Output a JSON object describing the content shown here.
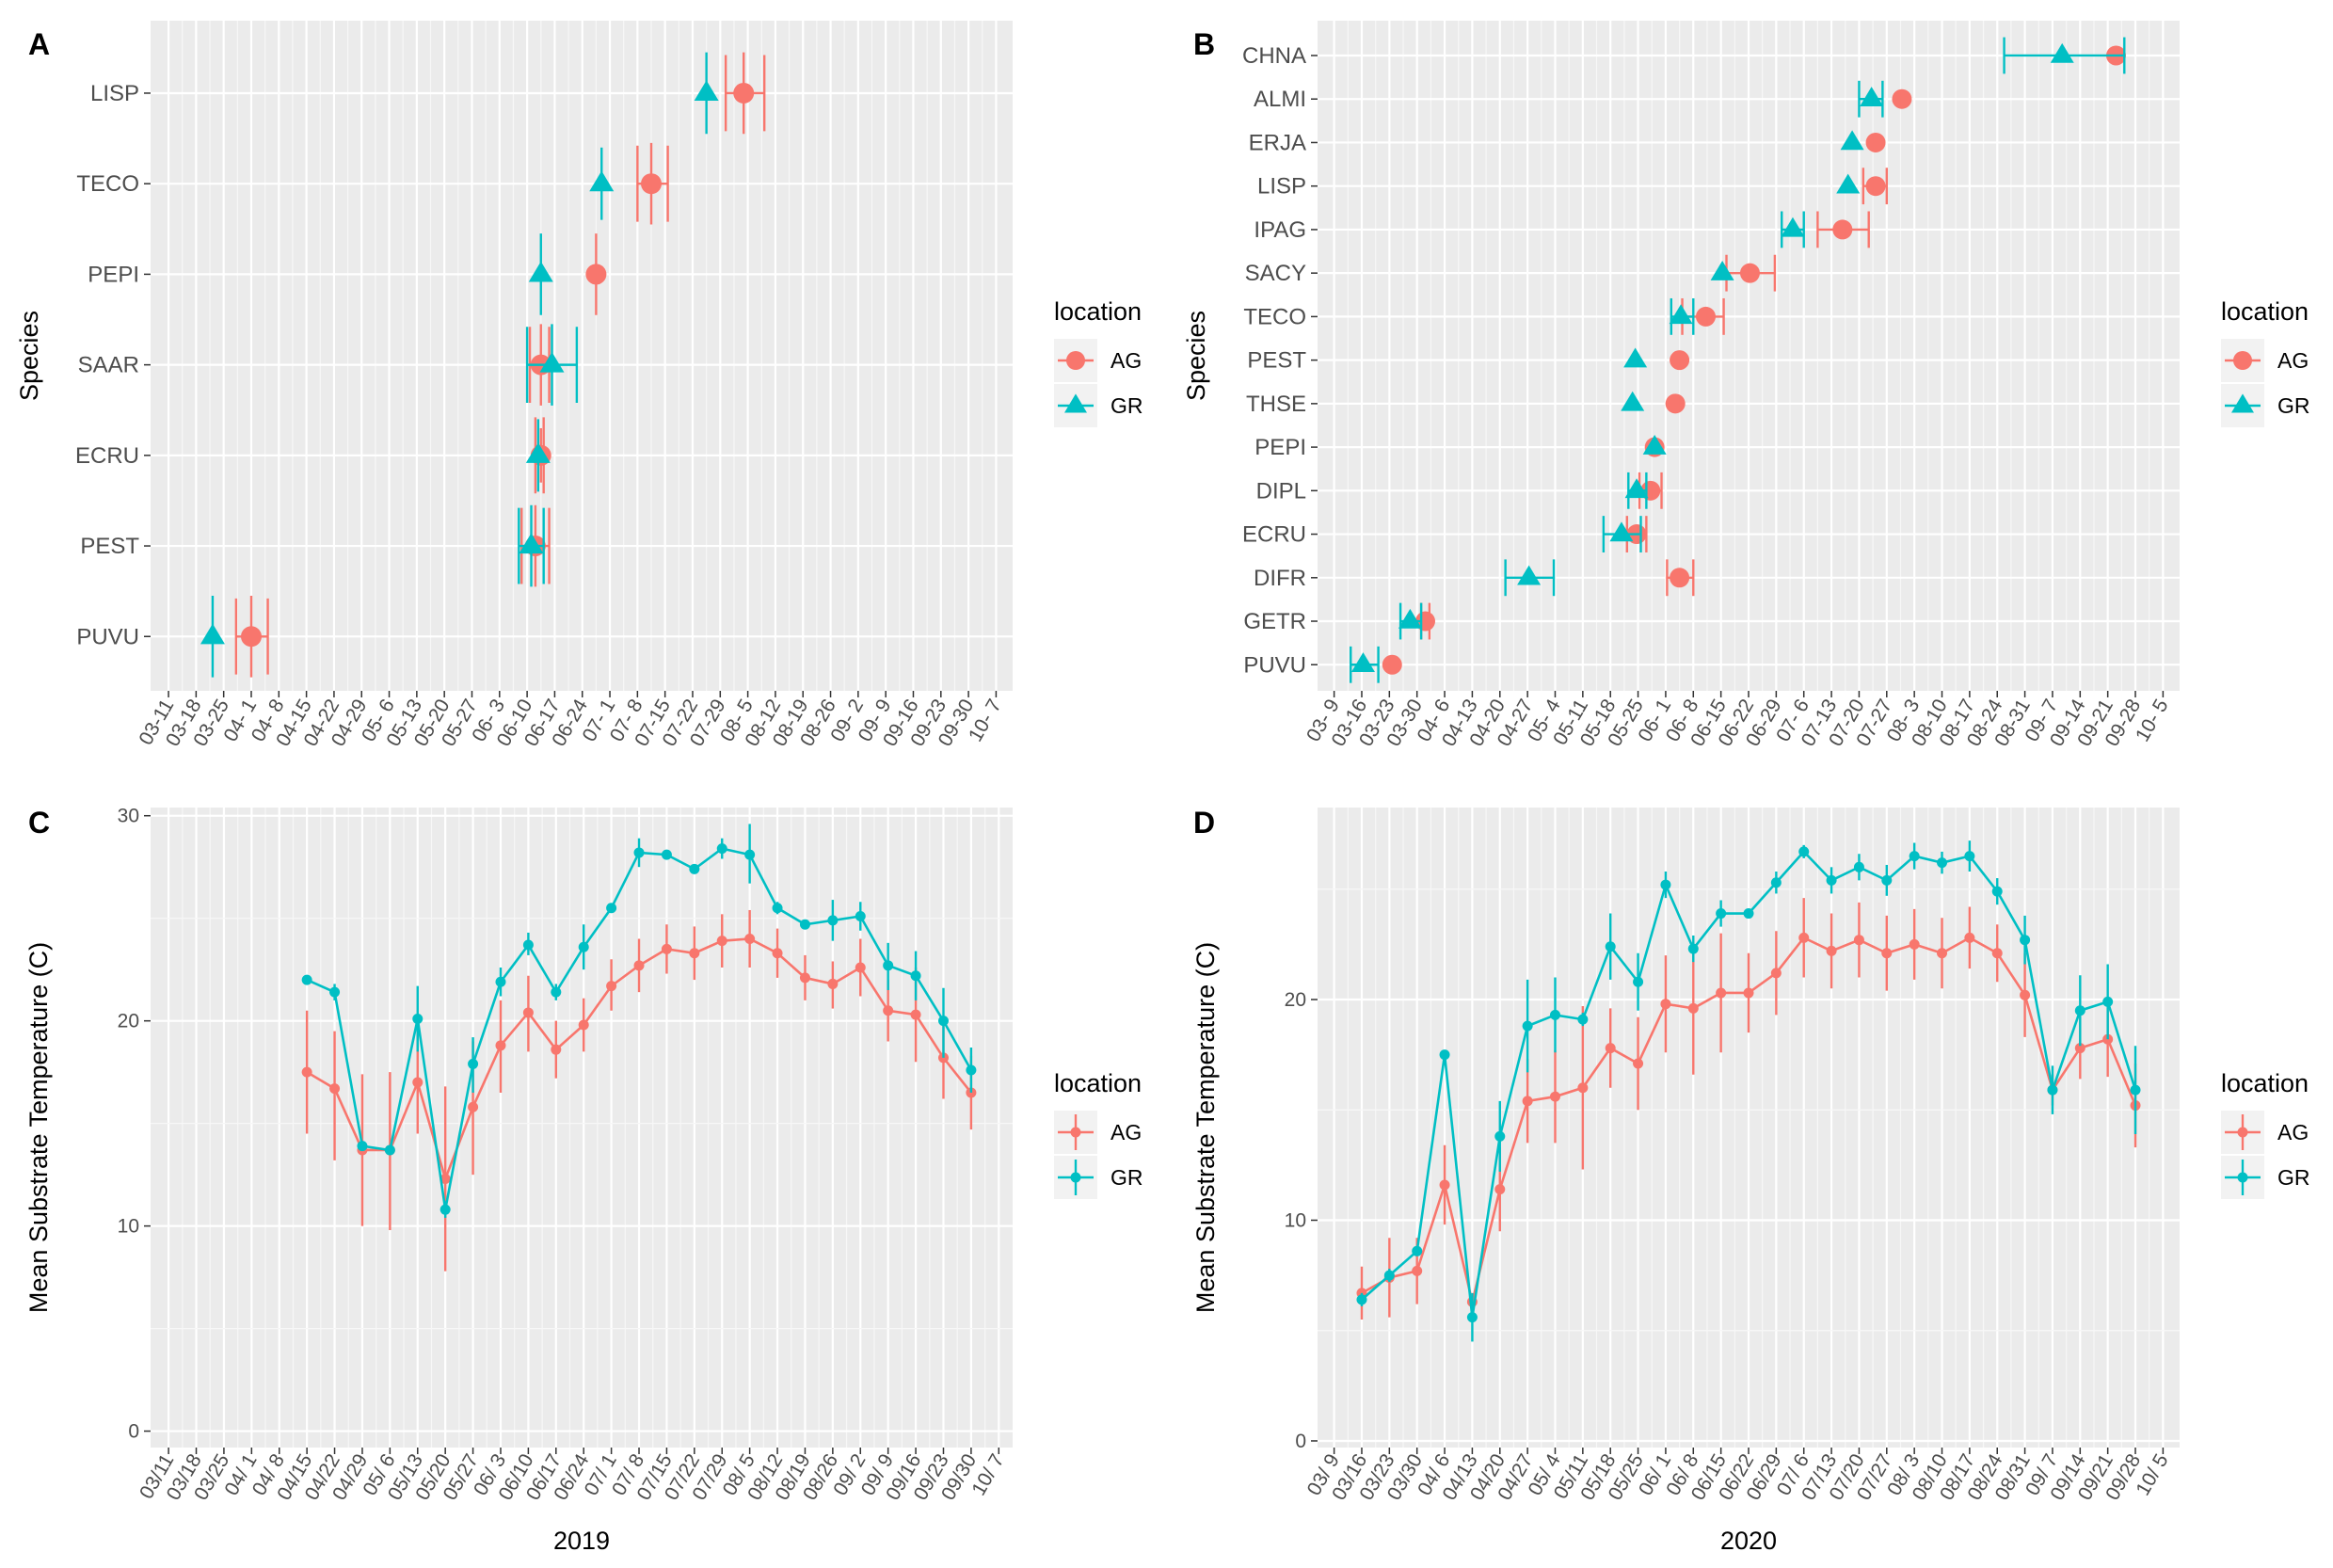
{
  "colors": {
    "AG": "#F8766D",
    "GR": "#00BFC4",
    "panel_bg": "#EBEBEB",
    "grid": "#FFFFFF",
    "axis_text": "#4D4D4D"
  },
  "panels": {
    "A": "A",
    "B": "B",
    "C": "C",
    "D": "D"
  },
  "legend": {
    "title": "location",
    "entries": [
      "AG",
      "GR"
    ]
  },
  "chart_data": [
    {
      "panel": "A",
      "type": "scatter",
      "orientation": "horizontal-errorbars",
      "ylabel": "Species",
      "xlabel": "",
      "x_ticks": [
        "03-11",
        "03-18",
        "03-25",
        "04- 1",
        "04- 8",
        "04-15",
        "04-22",
        "04-29",
        "05- 6",
        "05-13",
        "05-20",
        "05-27",
        "06- 3",
        "06-10",
        "06-17",
        "06-24",
        "07- 1",
        "07- 8",
        "07-15",
        "07-22",
        "07-29",
        "08- 5",
        "08-12",
        "08-19",
        "08-26",
        "09- 2",
        "09- 9",
        "09-16",
        "09-23",
        "09-30",
        "10- 7"
      ],
      "x_range_weeks": [
        -0.65,
        30.6
      ],
      "species": [
        "LISP",
        "TECO",
        "PEPI",
        "SAAR",
        "ECRU",
        "PEST",
        "PUVU"
      ],
      "series": [
        {
          "name": "AG",
          "points": [
            {
              "species": "LISP",
              "x": 20.85,
              "xmin": 20.2,
              "xmax": 21.6,
              "ymin": 6.55,
              "ymax": 7.45
            },
            {
              "species": "TECO",
              "x": 17.5,
              "xmin": 17.0,
              "xmax": 18.1,
              "ymin": 5.55,
              "ymax": 6.45
            },
            {
              "species": "PEPI",
              "x": 15.5,
              "xmin": 15.5,
              "xmax": 15.5,
              "ymin": 4.55,
              "ymax": 5.45
            },
            {
              "species": "SAAR",
              "x": 13.5,
              "xmin": 13.1,
              "xmax": 13.8,
              "ymin": 3.55,
              "ymax": 4.45
            },
            {
              "species": "ECRU",
              "x": 13.5,
              "xmin": 13.3,
              "xmax": 13.6,
              "ymin": 2.7,
              "ymax": 3.3
            },
            {
              "species": "PEST",
              "x": 13.3,
              "xmin": 12.8,
              "xmax": 13.8,
              "ymin": 1.55,
              "ymax": 2.45
            },
            {
              "species": "PUVU",
              "x": 3.0,
              "xmin": 2.45,
              "xmax": 3.6,
              "ymin": 0.55,
              "ymax": 1.45
            }
          ]
        },
        {
          "name": "GR",
          "points": [
            {
              "species": "LISP",
              "x": 19.5,
              "xmin": 19.5,
              "xmax": 19.5,
              "ymin": 6.55,
              "ymax": 7.45
            },
            {
              "species": "TECO",
              "x": 15.7,
              "xmin": 15.7,
              "xmax": 15.7,
              "ymin": 5.6,
              "ymax": 6.4
            },
            {
              "species": "PEPI",
              "x": 13.5,
              "xmin": 13.5,
              "xmax": 13.5,
              "ymin": 4.55,
              "ymax": 5.45
            },
            {
              "species": "SAAR",
              "x": 13.9,
              "xmin": 13.0,
              "xmax": 14.8,
              "ymin": 3.55,
              "ymax": 4.45
            },
            {
              "species": "ECRU",
              "x": 13.4,
              "xmin": 13.4,
              "xmax": 13.4,
              "ymin": 2.6,
              "ymax": 3.4
            },
            {
              "species": "PEST",
              "x": 13.15,
              "xmin": 12.7,
              "xmax": 13.6,
              "ymin": 1.55,
              "ymax": 2.45
            },
            {
              "species": "PUVU",
              "x": 1.6,
              "xmin": 1.6,
              "xmax": 1.6,
              "ymin": 0.55,
              "ymax": 1.45
            }
          ]
        }
      ]
    },
    {
      "panel": "B",
      "type": "scatter",
      "orientation": "horizontal-errorbars",
      "ylabel": "Species",
      "xlabel": "",
      "x_ticks": [
        "03- 9",
        "03-16",
        "03-23",
        "03-30",
        "04- 6",
        "04-13",
        "04-20",
        "04-27",
        "05- 4",
        "05-11",
        "05-18",
        "05-25",
        "06- 1",
        "06- 8",
        "06-15",
        "06-22",
        "06-29",
        "07- 6",
        "07-13",
        "07-20",
        "07-27",
        "08- 3",
        "08-10",
        "08-17",
        "08-24",
        "08-31",
        "09- 7",
        "09-14",
        "09-21",
        "09-28",
        "10- 5"
      ],
      "x_range_weeks": [
        -0.6,
        30.6
      ],
      "species": [
        "CHNA",
        "ALMI",
        "ERJA",
        "LISP",
        "IPAG",
        "SACY",
        "TECO",
        "PEST",
        "THSE",
        "PEPI",
        "DIPL",
        "ECRU",
        "DIFR",
        "GETR",
        "PUVU"
      ],
      "series": [
        {
          "name": "AG",
          "points": [
            {
              "species": "CHNA",
              "x": 28.3,
              "xmin": 28.3,
              "xmax": 28.3
            },
            {
              "species": "ALMI",
              "x": 20.55,
              "xmin": 20.55,
              "xmax": 20.55
            },
            {
              "species": "ERJA",
              "x": 19.6,
              "xmin": 19.6,
              "xmax": 19.6
            },
            {
              "species": "LISP",
              "x": 19.6,
              "xmin": 19.15,
              "xmax": 20.0
            },
            {
              "species": "IPAG",
              "x": 18.4,
              "xmin": 17.5,
              "xmax": 19.35
            },
            {
              "species": "SACY",
              "x": 15.05,
              "xmin": 14.2,
              "xmax": 15.95
            },
            {
              "species": "TECO",
              "x": 13.45,
              "xmin": 12.6,
              "xmax": 14.1
            },
            {
              "species": "PEST",
              "x": 12.5,
              "xmin": 12.5,
              "xmax": 12.5
            },
            {
              "species": "THSE",
              "x": 12.35,
              "xmin": 12.35,
              "xmax": 12.35
            },
            {
              "species": "PEPI",
              "x": 11.6,
              "xmin": 11.6,
              "xmax": 11.6
            },
            {
              "species": "DIPL",
              "x": 11.45,
              "xmin": 11.05,
              "xmax": 11.85
            },
            {
              "species": "ECRU",
              "x": 10.95,
              "xmin": 10.6,
              "xmax": 11.3
            },
            {
              "species": "DIFR",
              "x": 12.5,
              "xmin": 12.05,
              "xmax": 13.0
            },
            {
              "species": "GETR",
              "x": 3.3,
              "xmin": 3.15,
              "xmax": 3.45
            },
            {
              "species": "PUVU",
              "x": 2.1,
              "xmin": 2.1,
              "xmax": 2.1
            }
          ]
        },
        {
          "name": "GR",
          "points": [
            {
              "species": "CHNA",
              "x": 26.35,
              "xmin": 24.25,
              "xmax": 28.6
            },
            {
              "species": "ALMI",
              "x": 19.45,
              "xmin": 19.0,
              "xmax": 19.85
            },
            {
              "species": "ERJA",
              "x": 18.75,
              "xmin": 18.75,
              "xmax": 18.75
            },
            {
              "species": "LISP",
              "x": 18.6,
              "xmin": 18.6,
              "xmax": 18.6
            },
            {
              "species": "IPAG",
              "x": 16.6,
              "xmin": 16.2,
              "xmax": 17.0
            },
            {
              "species": "SACY",
              "x": 14.05,
              "xmin": 14.05,
              "xmax": 14.05
            },
            {
              "species": "TECO",
              "x": 12.55,
              "xmin": 12.2,
              "xmax": 13.0
            },
            {
              "species": "PEST",
              "x": 10.9,
              "xmin": 10.9,
              "xmax": 10.9
            },
            {
              "species": "THSE",
              "x": 10.8,
              "xmin": 10.8,
              "xmax": 10.8
            },
            {
              "species": "PEPI",
              "x": 11.6,
              "xmin": 11.6,
              "xmax": 11.6
            },
            {
              "species": "DIPL",
              "x": 10.95,
              "xmin": 10.65,
              "xmax": 11.3
            },
            {
              "species": "ECRU",
              "x": 10.4,
              "xmin": 9.75,
              "xmax": 11.1
            },
            {
              "species": "DIFR",
              "x": 7.05,
              "xmin": 6.2,
              "xmax": 7.95
            },
            {
              "species": "GETR",
              "x": 2.75,
              "xmin": 2.4,
              "xmax": 3.15
            },
            {
              "species": "PUVU",
              "x": 1.05,
              "xmin": 0.6,
              "xmax": 1.6
            }
          ]
        }
      ]
    },
    {
      "panel": "C",
      "type": "line",
      "title": "",
      "xlabel": "2019",
      "ylabel": "Mean Substrate Temperature (C)",
      "x_ticks": [
        "03/11",
        "03/18",
        "03/25",
        "04/ 1",
        "04/ 8",
        "04/15",
        "04/22",
        "04/29",
        "05/ 6",
        "05/13",
        "05/20",
        "05/27",
        "06/ 3",
        "06/10",
        "06/17",
        "06/24",
        "07/ 1",
        "07/ 8",
        "07/15",
        "07/22",
        "07/29",
        "08/ 5",
        "08/12",
        "08/19",
        "08/26",
        "09/ 2",
        "09/ 9",
        "09/16",
        "09/23",
        "09/30",
        "10/ 7"
      ],
      "x_range_weeks": [
        -0.65,
        30.5
      ],
      "y_ticks": [
        0,
        10,
        20,
        30
      ],
      "ylim": [
        -0.8,
        30.4
      ],
      "series": [
        {
          "name": "AG",
          "x": [
            5,
            6,
            7,
            8,
            9,
            10,
            11,
            12,
            13,
            14,
            15,
            16,
            17,
            18,
            19,
            20,
            21,
            22,
            23,
            24,
            25,
            26,
            27,
            28,
            29
          ],
          "values": [
            17.5,
            16.7,
            13.7,
            13.7,
            17.0,
            12.3,
            15.8,
            18.8,
            20.4,
            18.6,
            19.8,
            21.7,
            22.7,
            23.5,
            23.3,
            23.9,
            24.0,
            23.3,
            22.1,
            21.8,
            22.6,
            20.5,
            20.3,
            18.2,
            16.5
          ],
          "lower": [
            14.5,
            13.2,
            10.0,
            9.8,
            14.5,
            7.8,
            12.5,
            16.5,
            18.5,
            17.2,
            18.5,
            20.5,
            21.4,
            22.3,
            22.0,
            22.6,
            22.6,
            22.1,
            21.0,
            20.6,
            21.2,
            19.0,
            18.0,
            16.2,
            14.7
          ],
          "upper": [
            20.5,
            19.5,
            17.4,
            17.5,
            19.5,
            16.8,
            19.0,
            21.0,
            22.2,
            20.0,
            21.1,
            23.0,
            24.0,
            24.7,
            24.6,
            25.2,
            25.4,
            24.5,
            23.2,
            22.9,
            24.0,
            22.0,
            22.6,
            20.2,
            18.3
          ]
        },
        {
          "name": "GR",
          "x": [
            5,
            6,
            7,
            8,
            9,
            10,
            11,
            12,
            13,
            14,
            15,
            16,
            17,
            18,
            19,
            20,
            21,
            22,
            23,
            24,
            25,
            26,
            27,
            28,
            29
          ],
          "values": [
            22.0,
            21.4,
            13.9,
            13.7,
            20.1,
            10.8,
            17.9,
            21.9,
            23.7,
            21.4,
            23.6,
            25.5,
            28.2,
            28.1,
            27.4,
            28.4,
            28.1,
            25.5,
            24.7,
            24.9,
            25.1,
            22.7,
            22.2,
            20.0,
            17.6
          ],
          "lower": [
            21.8,
            21.0,
            13.7,
            13.5,
            18.5,
            10.4,
            16.5,
            21.2,
            23.2,
            21.0,
            22.5,
            25.3,
            27.5,
            27.9,
            27.2,
            27.9,
            26.7,
            25.2,
            24.5,
            23.9,
            24.4,
            21.5,
            21.0,
            18.2,
            16.5
          ],
          "upper": [
            22.2,
            21.8,
            14.1,
            13.9,
            21.7,
            11.2,
            19.2,
            22.6,
            24.3,
            21.8,
            24.7,
            25.7,
            28.9,
            28.3,
            27.6,
            28.9,
            29.6,
            25.8,
            24.9,
            25.9,
            25.8,
            23.8,
            23.4,
            21.6,
            18.7
          ]
        }
      ]
    },
    {
      "panel": "D",
      "type": "line",
      "title": "",
      "xlabel": "2020",
      "ylabel": "Mean Substrate Temperature (C)",
      "x_ticks": [
        "03/ 9",
        "03/16",
        "03/23",
        "03/30",
        "04/ 6",
        "04/13",
        "04/20",
        "04/27",
        "05/ 4",
        "05/11",
        "05/18",
        "05/25",
        "06/ 1",
        "06/ 8",
        "06/15",
        "06/22",
        "06/29",
        "07/ 6",
        "07/13",
        "07/20",
        "07/27",
        "08/ 3",
        "08/10",
        "08/17",
        "08/24",
        "08/31",
        "09/ 7",
        "09/14",
        "09/21",
        "09/28",
        "10/ 5"
      ],
      "x_range_weeks": [
        -0.6,
        30.6
      ],
      "y_ticks": [
        0,
        10,
        20
      ],
      "ylim": [
        -0.3,
        28.7
      ],
      "series": [
        {
          "name": "AG",
          "x": [
            1,
            2,
            3,
            4,
            5,
            6,
            7,
            8,
            9,
            10,
            11,
            12,
            13,
            14,
            15,
            16,
            17,
            18,
            19,
            20,
            21,
            22,
            23,
            24,
            25,
            26,
            27,
            28,
            29
          ],
          "values": [
            6.7,
            7.4,
            7.7,
            11.6,
            6.3,
            11.4,
            15.4,
            15.6,
            16.0,
            17.8,
            17.1,
            19.8,
            19.6,
            20.3,
            20.3,
            21.2,
            22.8,
            22.2,
            22.7,
            22.1,
            22.5,
            22.1,
            22.8,
            22.1,
            20.2,
            15.9,
            17.8,
            18.2,
            15.2
          ],
          "lower": [
            5.5,
            5.6,
            6.2,
            9.8,
            6.0,
            9.5,
            13.5,
            13.5,
            12.3,
            16.0,
            15.0,
            17.6,
            16.6,
            17.6,
            18.5,
            19.3,
            21.0,
            20.5,
            21.0,
            20.4,
            20.9,
            20.5,
            21.4,
            20.8,
            18.3,
            15.2,
            16.4,
            16.5,
            13.3
          ],
          "upper": [
            7.9,
            9.2,
            9.2,
            13.4,
            6.6,
            13.3,
            17.3,
            17.7,
            19.7,
            19.6,
            19.2,
            22.0,
            22.6,
            23.0,
            22.1,
            23.1,
            24.6,
            23.9,
            24.4,
            23.8,
            24.1,
            23.7,
            24.2,
            23.4,
            22.1,
            16.6,
            19.2,
            19.9,
            17.1
          ]
        },
        {
          "name": "GR",
          "x": [
            1,
            2,
            3,
            4,
            5,
            6,
            7,
            8,
            9,
            10,
            11,
            12,
            13,
            14,
            15,
            16,
            17,
            18,
            19,
            20,
            21,
            22,
            23,
            24,
            25,
            26,
            27,
            28,
            29
          ],
          "values": [
            6.4,
            7.5,
            8.6,
            17.5,
            5.6,
            13.8,
            18.8,
            19.3,
            19.1,
            22.4,
            20.8,
            25.2,
            22.3,
            23.9,
            23.9,
            25.3,
            26.7,
            25.4,
            26.0,
            25.4,
            26.5,
            26.2,
            26.5,
            24.9,
            22.7,
            15.9,
            19.5,
            19.9,
            15.9
          ],
          "lower": [
            6.1,
            7.2,
            8.4,
            17.3,
            4.5,
            12.2,
            16.7,
            17.6,
            18.8,
            20.9,
            19.5,
            24.6,
            21.7,
            23.3,
            23.7,
            24.8,
            26.4,
            24.8,
            25.4,
            24.7,
            25.9,
            25.7,
            25.8,
            24.3,
            21.6,
            14.8,
            17.9,
            18.2,
            13.9
          ],
          "upper": [
            6.7,
            7.8,
            8.8,
            17.7,
            6.7,
            15.4,
            20.9,
            21.0,
            19.4,
            23.9,
            22.1,
            25.8,
            22.9,
            24.5,
            24.1,
            25.8,
            27.0,
            26.0,
            26.6,
            26.1,
            27.1,
            26.7,
            27.2,
            25.5,
            23.8,
            17.0,
            21.1,
            21.6,
            17.9
          ]
        }
      ]
    }
  ]
}
